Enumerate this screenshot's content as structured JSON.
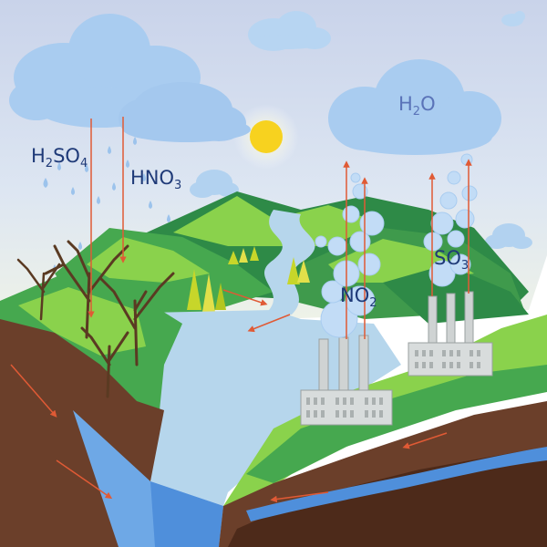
{
  "labels": {
    "h2so4": {
      "main1": "H",
      "sub1": "2",
      "main2": "SO",
      "sub2": "4"
    },
    "hno3": {
      "main1": "HNO",
      "sub1": "3"
    },
    "h2o": {
      "main1": "H",
      "sub1": "2",
      "main2": "O"
    },
    "so3": {
      "main1": "SO",
      "sub1": "3"
    },
    "no2": {
      "main1": "NO",
      "sub1": "2"
    }
  },
  "colors": {
    "sky_top": "#c9d3ea",
    "sky_bottom": "#e7efe0",
    "cloud": "#a9ccf0",
    "cloud_dark": "#8fbbe8",
    "sun": "#f7d21f",
    "hill_dark": "#2e8a47",
    "hill_mid": "#46a84f",
    "hill_light": "#8ad24c",
    "lake": "#b6d6ec",
    "water_side": "#6ea8e6",
    "soil": "#6b3f2a",
    "soil_dark": "#4d2a1a",
    "arrow": "#e05a35",
    "factory": "#d8dcdc",
    "bubble": "#c2dcf6",
    "tree": "#5a3a22",
    "label": "#1f3a78"
  }
}
